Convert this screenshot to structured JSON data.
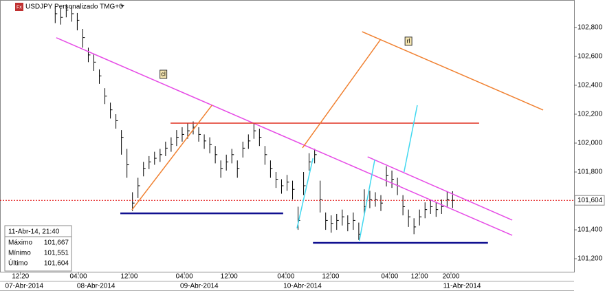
{
  "chart_data": {
    "type": "ohlc",
    "title": "USDJPY Personalizado TMG+0",
    "x": [
      0,
      1,
      2,
      3,
      4,
      5,
      6,
      7,
      8,
      9,
      10,
      11,
      12,
      13,
      14,
      15,
      16,
      17,
      18,
      19,
      20,
      21,
      22,
      23,
      24,
      25,
      26,
      27,
      28,
      29,
      30,
      31,
      32,
      33,
      34,
      35,
      36,
      37,
      38,
      39,
      40,
      41,
      42,
      43,
      44,
      45,
      46,
      47,
      48,
      49,
      50,
      51,
      52,
      53,
      54,
      55,
      56,
      57,
      58,
      59,
      60,
      61,
      62,
      63,
      64,
      65,
      66,
      67,
      68,
      69,
      70,
      71,
      72
    ],
    "high": [
      102940,
      102935,
      102960,
      102950,
      102900,
      102790,
      102660,
      102620,
      102510,
      102380,
      102280,
      102200,
      102090,
      101960,
      101660,
      101760,
      101870,
      101910,
      101940,
      101960,
      102010,
      102040,
      102090,
      102110,
      102140,
      102150,
      102110,
      102060,
      102040,
      101980,
      101880,
      101920,
      101960,
      101880,
      102010,
      102060,
      102140,
      102100,
      101980,
      101880,
      101800,
      101750,
      101780,
      101740,
      101560,
      101800,
      101930,
      101960,
      101740,
      101520,
      101500,
      101510,
      101540,
      101500,
      101520,
      101450,
      101680,
      101670,
      101660,
      101640,
      101840,
      101810,
      101760,
      101640,
      101540,
      101480,
      101540,
      101590,
      101610,
      101590,
      101610,
      101667,
      101667
    ],
    "low": [
      102830,
      102820,
      102870,
      102840,
      102780,
      102660,
      102560,
      102500,
      102410,
      102270,
      102170,
      102100,
      101920,
      101760,
      101530,
      101620,
      101770,
      101820,
      101850,
      101870,
      101910,
      101940,
      101980,
      102010,
      102030,
      102060,
      102010,
      101960,
      101930,
      101860,
      101760,
      101810,
      101860,
      101760,
      101900,
      101960,
      102030,
      101980,
      101850,
      101760,
      101690,
      101650,
      101670,
      101610,
      101400,
      101640,
      101810,
      101860,
      101520,
      101400,
      101380,
      101400,
      101430,
      101390,
      101400,
      101330,
      101500,
      101550,
      101560,
      101530,
      101700,
      101690,
      101640,
      101500,
      101420,
      101370,
      101430,
      101480,
      101510,
      101490,
      101510,
      101560,
      101551
    ],
    "close": [
      102895,
      102870,
      102920,
      102895,
      102850,
      102730,
      102610,
      102560,
      102465,
      102325,
      102230,
      102155,
      102040,
      101850,
      101585,
      101705,
      101825,
      101870,
      101895,
      101920,
      101965,
      101990,
      102040,
      102060,
      102085,
      102110,
      102060,
      102015,
      101990,
      101920,
      101825,
      101870,
      101920,
      101825,
      101965,
      102015,
      102085,
      102040,
      101920,
      101825,
      101750,
      101705,
      101730,
      101680,
      101465,
      101705,
      101870,
      101920,
      101610,
      101465,
      101445,
      101465,
      101490,
      101445,
      101465,
      101370,
      101560,
      101610,
      101610,
      101585,
      101775,
      101750,
      101705,
      101560,
      101490,
      101420,
      101490,
      101540,
      101560,
      101540,
      101560,
      101610,
      101604
    ],
    "color": "#000000",
    "xlim": [
      -10,
      94
    ],
    "ylim": [
      101110,
      102990
    ],
    "xticks": [
      {
        "value": -6.3,
        "label": "12:20"
      },
      {
        "value": 4.2,
        "label": "04:00"
      },
      {
        "value": 13.4,
        "label": "12:00"
      },
      {
        "value": 23.4,
        "label": "04:00"
      },
      {
        "value": 31.5,
        "label": "12:00"
      },
      {
        "value": 41.8,
        "label": "04:00"
      },
      {
        "value": 49.9,
        "label": "12:00"
      },
      {
        "value": 60.6,
        "label": "04:00"
      },
      {
        "value": 66,
        "label": "12:00"
      },
      {
        "value": 71.7,
        "label": "20:00"
      }
    ],
    "date_ticks": [
      {
        "value": -5.6,
        "label": "07-Abr-2014"
      },
      {
        "value": 7.4,
        "label": "08-Abr-2014"
      },
      {
        "value": 26.1,
        "label": "09-Abr-2014"
      },
      {
        "value": 44.8,
        "label": "10-Abr-2014"
      },
      {
        "value": 73.7,
        "label": "11-Abr-2014"
      }
    ],
    "yticks": [
      {
        "value": 101200,
        "label": "101,200"
      },
      {
        "value": 101400,
        "label": "101,400"
      },
      {
        "value": 101800,
        "label": "101,800"
      },
      {
        "value": 102000,
        "label": "102,000"
      },
      {
        "value": 102200,
        "label": "102,200"
      },
      {
        "value": 102400,
        "label": "102,400"
      },
      {
        "value": 102600,
        "label": "102,600"
      },
      {
        "value": 102800,
        "label": "102,800"
      }
    ],
    "last_price": {
      "value": 101604,
      "label": "101,604",
      "color": "#e00000"
    },
    "drawings": [
      {
        "color": "#e64ce6",
        "points": [
          [
            0.2,
            102729
          ],
          [
            82.8,
            101362
          ]
        ]
      },
      {
        "color": "#e64ce6",
        "points": [
          [
            56.6,
            101905
          ],
          [
            82.8,
            101467
          ]
        ]
      },
      {
        "color": "#e03020",
        "points": [
          [
            20.9,
            102138
          ],
          [
            76.8,
            102138
          ]
        ]
      },
      {
        "color": "#f08030",
        "points": [
          [
            13.9,
            101538
          ],
          [
            28.4,
            102262
          ]
        ]
      },
      {
        "color": "#f08030",
        "points": [
          [
            44.8,
            101967
          ],
          [
            58.9,
            102714
          ]
        ]
      },
      {
        "color": "#f08030",
        "points": [
          [
            55.6,
            102771
          ],
          [
            88.4,
            102229
          ]
        ]
      },
      {
        "color": "#101090",
        "points": [
          [
            11.8,
            101514
          ],
          [
            41.3,
            101514
          ]
        ]
      },
      {
        "color": "#101090",
        "points": [
          [
            46.7,
            101310
          ],
          [
            78.4,
            101310
          ]
        ]
      },
      {
        "color": "#40d8f0",
        "points": [
          [
            43.8,
            101410
          ],
          [
            46.7,
            101895
          ]
        ]
      },
      {
        "color": "#40d8f0",
        "points": [
          [
            55.1,
            101324
          ],
          [
            57.9,
            101886
          ]
        ]
      },
      {
        "color": "#40d8f0",
        "points": [
          [
            63.2,
            101800
          ],
          [
            65.6,
            102262
          ]
        ]
      }
    ],
    "annotations": [
      {
        "text": "cl",
        "x": 19.6,
        "y": 102476
      },
      {
        "text": "rl",
        "x": 64,
        "y": 102705
      }
    ],
    "info": {
      "date": "11-Abr-14, 21:40",
      "rows": [
        [
          "Máximo",
          "101,667"
        ],
        [
          "Mínimo",
          "101,551"
        ],
        [
          "Último",
          "101,604"
        ]
      ]
    }
  }
}
